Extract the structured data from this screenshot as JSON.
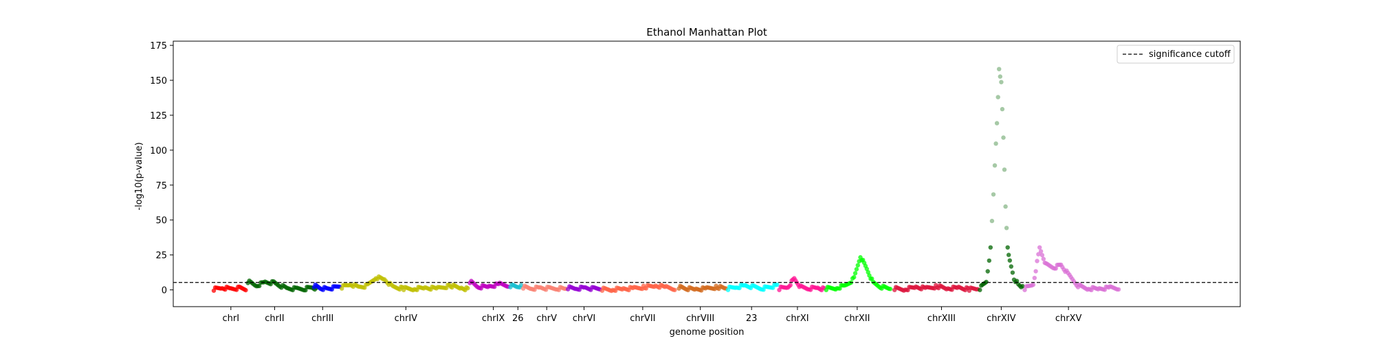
{
  "chart_data": {
    "type": "scatter",
    "title": "Ethanol Manhattan Plot",
    "xlabel": "genome position",
    "ylabel": "-log10(p-value)",
    "ylim": [
      -12,
      178
    ],
    "yticks": [
      0,
      25,
      50,
      75,
      100,
      125,
      150,
      175
    ],
    "grid": false,
    "legend": {
      "placement": "top-right",
      "entries": [
        {
          "label": "significance cutoff",
          "style": "dashed",
          "color": "#000000"
        }
      ]
    },
    "threshold": 5.3,
    "xlim": [
      0,
      1000
    ],
    "chromosomes": [
      {
        "name": "chrI",
        "label": "chrI",
        "center": 54,
        "color": "#ff0000",
        "points": [
          [
            38,
            0.5
          ],
          [
            46,
            1.5
          ],
          [
            54,
            0.8
          ],
          [
            62,
            1.2
          ],
          [
            68,
            0.5
          ]
        ]
      },
      {
        "name": "chrII",
        "label": "chrII",
        "center": 95,
        "color": "#006400",
        "points": [
          [
            70,
            6
          ],
          [
            78,
            3
          ],
          [
            86,
            5.5
          ],
          [
            94,
            5
          ],
          [
            100,
            3
          ],
          [
            108,
            1
          ],
          [
            116,
            0.8
          ],
          [
            124,
            0.8
          ],
          [
            130,
            2
          ],
          [
            134,
            1
          ]
        ]
      },
      {
        "name": "chrIII",
        "label": "chrIII",
        "center": 140,
        "color": "#0000ff",
        "points": [
          [
            132,
            3
          ],
          [
            138,
            1.2
          ],
          [
            144,
            0.8
          ],
          [
            150,
            1.5
          ],
          [
            156,
            3
          ]
        ]
      },
      {
        "name": "chrIV",
        "label": "chrIV",
        "center": 218,
        "color": "#bfbf00",
        "points": [
          [
            158,
            2
          ],
          [
            166,
            4
          ],
          [
            174,
            2
          ],
          [
            182,
            3
          ],
          [
            190,
            9
          ],
          [
            198,
            7.5
          ],
          [
            206,
            2
          ],
          [
            216,
            1
          ],
          [
            226,
            0.8
          ],
          [
            236,
            1.5
          ],
          [
            248,
            1
          ],
          [
            260,
            3
          ],
          [
            270,
            1.5
          ],
          [
            276,
            0.5
          ]
        ]
      },
      {
        "name": "chrIX",
        "label": "chrIX",
        "center": 300,
        "color": "#bf00bf",
        "points": [
          [
            278,
            6
          ],
          [
            286,
            2
          ],
          [
            296,
            2.5
          ],
          [
            306,
            4
          ],
          [
            314,
            3
          ]
        ]
      },
      {
        "name": "26",
        "label": "26",
        "center": 323,
        "color": "#17becf",
        "points": [
          [
            316,
            3
          ],
          [
            322,
            2.5
          ],
          [
            326,
            3
          ]
        ]
      },
      {
        "name": "chrV",
        "label": "chrV",
        "center": 350,
        "color": "#fa8072",
        "points": [
          [
            328,
            2
          ],
          [
            336,
            1
          ],
          [
            344,
            1.5
          ],
          [
            352,
            1
          ],
          [
            360,
            1
          ],
          [
            368,
            0.8
          ]
        ]
      },
      {
        "name": "chrVI",
        "label": "chrVI",
        "center": 385,
        "color": "#9400d3",
        "points": [
          [
            370,
            1.5
          ],
          [
            378,
            1
          ],
          [
            386,
            1.5
          ],
          [
            394,
            0.8
          ],
          [
            400,
            1
          ]
        ]
      },
      {
        "name": "chrVII",
        "label": "chrVII",
        "center": 440,
        "color": "#ff6347",
        "points": [
          [
            402,
            0.5
          ],
          [
            412,
            0.3
          ],
          [
            422,
            0.8
          ],
          [
            432,
            1
          ],
          [
            442,
            2
          ],
          [
            452,
            3
          ],
          [
            462,
            2
          ],
          [
            470,
            1
          ]
        ]
      },
      {
        "name": "chrVIII",
        "label": "chrVIII",
        "center": 494,
        "color": "#d2691e",
        "points": [
          [
            474,
            2
          ],
          [
            480,
            1
          ],
          [
            490,
            0.5
          ],
          [
            500,
            0.8
          ],
          [
            510,
            2
          ],
          [
            518,
            1
          ]
        ]
      },
      {
        "name": "23",
        "label": "23",
        "center": 542,
        "color": "#00ffff",
        "points": [
          [
            520,
            1
          ],
          [
            528,
            2
          ],
          [
            536,
            3
          ],
          [
            544,
            2
          ],
          [
            552,
            1
          ],
          [
            558,
            2
          ],
          [
            566,
            3
          ]
        ]
      },
      {
        "name": "chrXI",
        "label": "chrXI",
        "center": 585,
        "color": "#ff1493",
        "points": [
          [
            568,
            1
          ],
          [
            576,
            2
          ],
          [
            582,
            8
          ],
          [
            588,
            2
          ],
          [
            596,
            1
          ],
          [
            604,
            1.5
          ],
          [
            610,
            0.5
          ]
        ]
      },
      {
        "name": "chrXII",
        "label": "chrXII",
        "center": 641,
        "color": "#00ff00",
        "points": [
          [
            612,
            1
          ],
          [
            622,
            1.5
          ],
          [
            630,
            3
          ],
          [
            638,
            8
          ],
          [
            644,
            24
          ],
          [
            650,
            15
          ],
          [
            656,
            5
          ],
          [
            664,
            2
          ],
          [
            672,
            1
          ]
        ]
      },
      {
        "name": "chrXIII",
        "label": "chrXIII",
        "center": 720,
        "color": "#dc143c",
        "points": [
          [
            676,
            1
          ],
          [
            686,
            0.5
          ],
          [
            696,
            2
          ],
          [
            706,
            1
          ],
          [
            716,
            2.5
          ],
          [
            726,
            1
          ],
          [
            736,
            1.5
          ],
          [
            746,
            0.5
          ],
          [
            754,
            0.8
          ]
        ]
      },
      {
        "name": "chrXIV",
        "label": "chrXIV",
        "center": 776,
        "color": "#006400",
        "points": [
          [
            756,
            1
          ],
          [
            762,
            6
          ],
          [
            766,
            30
          ],
          [
            770,
            88
          ],
          [
            772,
            120
          ],
          [
            774,
            158
          ],
          [
            776,
            148
          ],
          [
            778,
            110
          ],
          [
            780,
            60
          ],
          [
            782,
            30
          ],
          [
            784,
            20
          ],
          [
            788,
            8
          ],
          [
            792,
            4
          ],
          [
            796,
            2
          ]
        ]
      },
      {
        "name": "chrXV",
        "label": "chrXV",
        "center": 839,
        "color": "#da70d6",
        "points": [
          [
            798,
            1
          ],
          [
            806,
            4
          ],
          [
            812,
            30
          ],
          [
            818,
            18
          ],
          [
            826,
            16
          ],
          [
            832,
            18
          ],
          [
            840,
            10
          ],
          [
            848,
            3
          ],
          [
            858,
            1
          ],
          [
            868,
            0.8
          ],
          [
            878,
            1.5
          ],
          [
            886,
            1
          ]
        ]
      }
    ]
  }
}
